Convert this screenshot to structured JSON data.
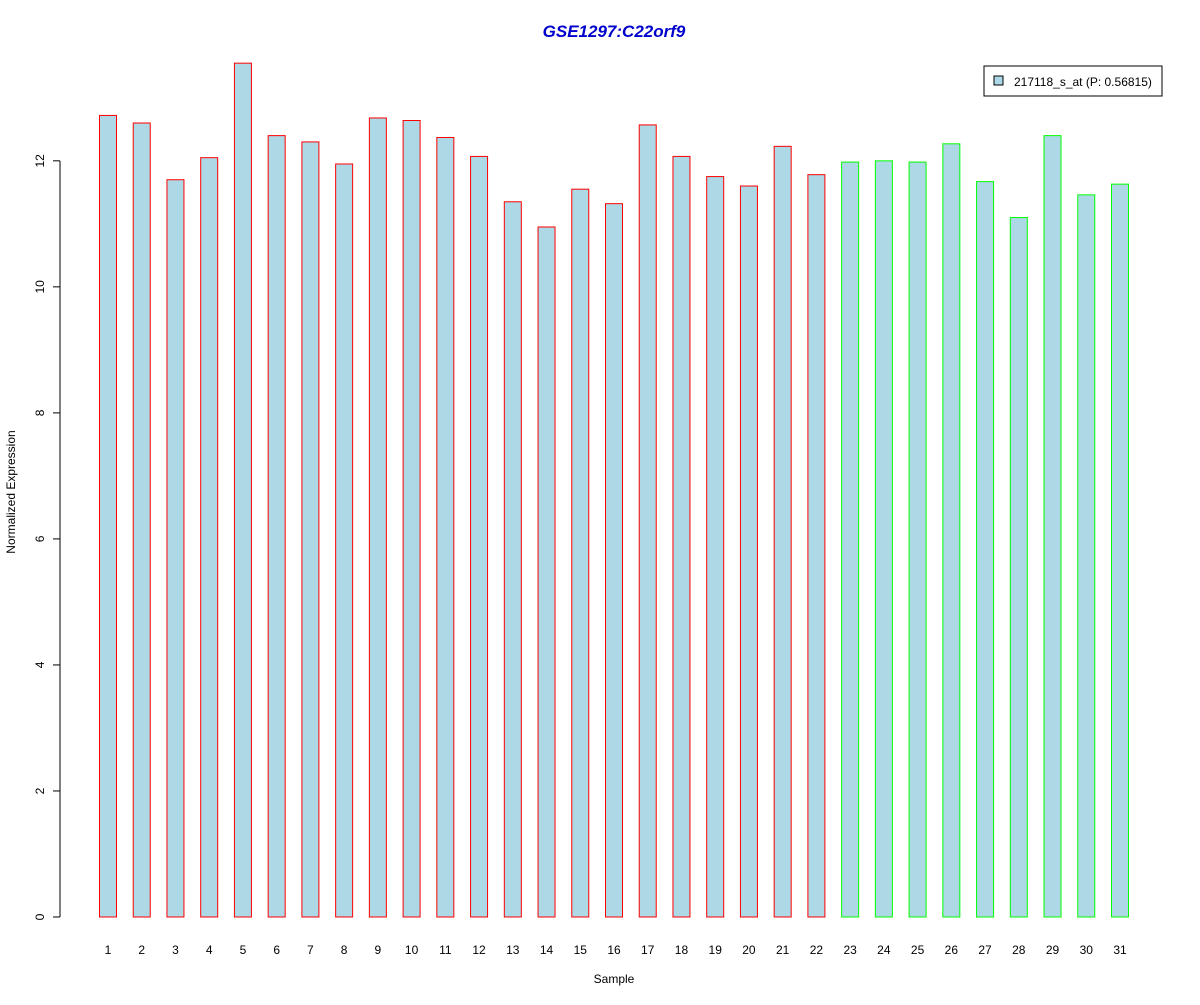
{
  "chart_data": {
    "type": "bar",
    "title": "GSE1297:C22orf9",
    "xlabel": "Sample",
    "ylabel": "Normalized Expression",
    "ylim": [
      0,
      13.6
    ],
    "yticks": [
      0,
      2,
      4,
      6,
      8,
      10,
      12
    ],
    "categories": [
      "1",
      "2",
      "3",
      "4",
      "5",
      "6",
      "7",
      "8",
      "9",
      "10",
      "11",
      "12",
      "13",
      "14",
      "15",
      "16",
      "17",
      "18",
      "19",
      "20",
      "21",
      "22",
      "23",
      "24",
      "25",
      "26",
      "27",
      "28",
      "29",
      "30",
      "31"
    ],
    "series": [
      {
        "name": "217118_s_at (P: 0.56815)",
        "values": [
          12.72,
          12.6,
          11.7,
          12.05,
          13.55,
          12.4,
          12.3,
          11.95,
          12.68,
          12.64,
          12.37,
          12.07,
          11.35,
          10.95,
          11.55,
          11.32,
          12.57,
          12.07,
          11.75,
          11.6,
          12.23,
          11.78,
          11.98,
          12.0,
          11.98,
          12.27,
          11.67,
          11.1,
          12.4,
          11.46,
          11.63
        ]
      }
    ],
    "bar_fill": "#add8e6",
    "group_border_colors": [
      "#ff0000",
      "#ff0000",
      "#ff0000",
      "#ff0000",
      "#ff0000",
      "#ff0000",
      "#ff0000",
      "#ff0000",
      "#ff0000",
      "#ff0000",
      "#ff0000",
      "#ff0000",
      "#ff0000",
      "#ff0000",
      "#ff0000",
      "#ff0000",
      "#ff0000",
      "#ff0000",
      "#ff0000",
      "#ff0000",
      "#ff0000",
      "#ff0000",
      "#00ff00",
      "#00ff00",
      "#00ff00",
      "#00ff00",
      "#00ff00",
      "#00ff00",
      "#00ff00",
      "#00ff00",
      "#00ff00"
    ],
    "title_color": "#0000cc",
    "legend_position": "top-right",
    "grid": false
  }
}
